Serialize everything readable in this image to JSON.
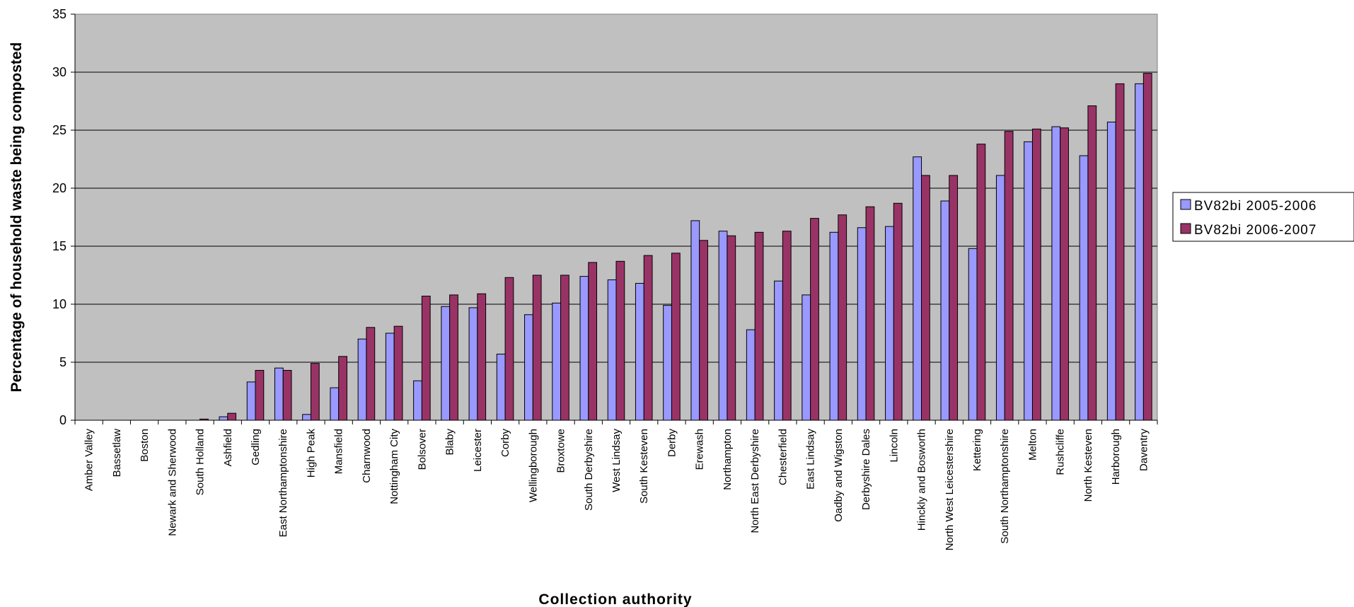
{
  "chart_data": {
    "type": "bar",
    "xlabel": "Collection authority",
    "ylabel": "Percentage of household waste being composted",
    "ylim": [
      0,
      35
    ],
    "yticks": [
      0,
      5,
      10,
      15,
      20,
      25,
      30,
      35
    ],
    "grid": true,
    "legend_position": "right",
    "plot_background": "#c0c0c0",
    "categories": [
      "Amber Valley",
      "Bassetlaw",
      "Boston",
      "Newark and Sherwood",
      "South Holland",
      "Ashfield",
      "Gedling",
      "East Northamptonshire",
      "High Peak",
      "Mansfield",
      "Charnwood",
      "Nottingham City",
      "Bolsover",
      "Blaby",
      "Leicester",
      "Corby",
      "Wellingborough",
      "Broxtowe",
      "South Derbyshire",
      "West Lindsay",
      "South Kesteven",
      "Derby",
      "Erewash",
      "Northampton",
      "North East Derbyshire",
      "Chesterfield",
      "East Lindsay",
      "Oadby and Wigston",
      "Derbyshire Dales",
      "Lincoln",
      "Hinckly and Bosworth",
      "North West Leicestershire",
      "Kettering",
      "South Northamptonshire",
      "Melton",
      "Rushcliffe",
      "North Kesteven",
      "Harborough",
      "Daventry"
    ],
    "series": [
      {
        "name": "BV82bi 2005-2006",
        "color": "#9999ff",
        "values": [
          0,
          0,
          0,
          0,
          0,
          0.3,
          3.3,
          4.5,
          0.5,
          2.8,
          7.0,
          7.5,
          3.4,
          9.8,
          9.7,
          5.7,
          9.1,
          10.1,
          12.4,
          12.1,
          11.8,
          9.9,
          17.2,
          16.3,
          7.8,
          12.0,
          10.8,
          16.2,
          16.6,
          16.7,
          22.7,
          18.9,
          14.8,
          21.1,
          24.0,
          25.3,
          22.8,
          25.7,
          29.0
        ]
      },
      {
        "name": "BV82bi 2006-2007",
        "color": "#993366",
        "values": [
          0,
          0,
          0,
          0,
          0.1,
          0.6,
          4.3,
          4.3,
          4.9,
          5.5,
          8.0,
          8.1,
          10.7,
          10.8,
          10.9,
          12.3,
          12.5,
          12.5,
          13.6,
          13.7,
          14.2,
          14.4,
          15.5,
          15.9,
          16.2,
          16.3,
          17.4,
          17.7,
          18.4,
          18.7,
          21.1,
          21.1,
          23.8,
          24.9,
          25.1,
          25.2,
          27.1,
          29.0,
          29.9
        ]
      }
    ]
  }
}
